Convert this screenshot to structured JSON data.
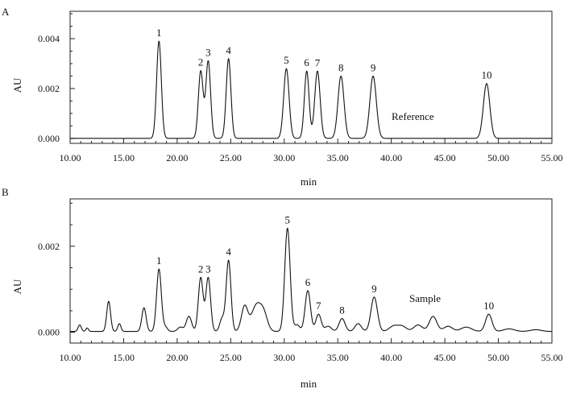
{
  "chart_data": [
    {
      "panel": "A",
      "type": "line",
      "xlabel": "min",
      "ylabel": "AU",
      "xlim": [
        10,
        55
      ],
      "ylim": [
        -0.0002,
        0.0051
      ],
      "x_ticks": [
        "10.00",
        "15.00",
        "20.00",
        "25.00",
        "30.00",
        "35.00",
        "40.00",
        "45.00",
        "50.00",
        "55.00"
      ],
      "y_ticks": [
        {
          "value": 0.0,
          "label": "0.000"
        },
        {
          "value": 0.002,
          "label": "0.002"
        },
        {
          "value": 0.004,
          "label": "0.004"
        }
      ],
      "annotation": "Reference",
      "baseline": 0.0,
      "peaks": [
        {
          "label": "1",
          "x": 18.3,
          "y": 0.0039,
          "width": 0.22
        },
        {
          "label": "2",
          "x": 22.2,
          "y": 0.0027,
          "width": 0.22
        },
        {
          "label": "3",
          "x": 22.9,
          "y": 0.0031,
          "width": 0.22
        },
        {
          "label": "4",
          "x": 24.8,
          "y": 0.0032,
          "width": 0.22
        },
        {
          "label": "5",
          "x": 30.2,
          "y": 0.0028,
          "width": 0.25
        },
        {
          "label": "6",
          "x": 32.1,
          "y": 0.0027,
          "width": 0.22
        },
        {
          "label": "7",
          "x": 33.1,
          "y": 0.0027,
          "width": 0.25
        },
        {
          "label": "8",
          "x": 35.3,
          "y": 0.0025,
          "width": 0.28
        },
        {
          "label": "9",
          "x": 38.3,
          "y": 0.0025,
          "width": 0.3
        },
        {
          "label": "10",
          "x": 48.9,
          "y": 0.0022,
          "width": 0.3
        }
      ],
      "minor_peaks": []
    },
    {
      "panel": "B",
      "type": "line",
      "xlabel": "min",
      "ylabel": "AU",
      "xlim": [
        10,
        55
      ],
      "ylim": [
        -0.00025,
        0.0031
      ],
      "x_ticks": [
        "10.00",
        "15.00",
        "20.00",
        "25.00",
        "30.00",
        "35.00",
        "40.00",
        "45.00",
        "50.00",
        "55.00"
      ],
      "y_ticks": [
        {
          "value": 0.0,
          "label": "0.000"
        },
        {
          "value": 0.002,
          "label": "0.002"
        }
      ],
      "annotation": "Sample",
      "baseline": 2e-05,
      "peaks": [
        {
          "label": "1",
          "x": 18.3,
          "y": 0.00145,
          "width": 0.22
        },
        {
          "label": "2",
          "x": 22.2,
          "y": 0.00125,
          "width": 0.22
        },
        {
          "label": "3",
          "x": 22.9,
          "y": 0.00125,
          "width": 0.22
        },
        {
          "label": "4",
          "x": 24.8,
          "y": 0.00165,
          "width": 0.22
        },
        {
          "label": "5",
          "x": 30.3,
          "y": 0.0024,
          "width": 0.25
        },
        {
          "label": "6",
          "x": 32.2,
          "y": 0.00095,
          "width": 0.25
        },
        {
          "label": "7",
          "x": 33.2,
          "y": 0.0004,
          "width": 0.25
        },
        {
          "label": "8",
          "x": 35.4,
          "y": 0.0003,
          "width": 0.28
        },
        {
          "label": "9",
          "x": 38.4,
          "y": 0.0008,
          "width": 0.3
        },
        {
          "label": "10",
          "x": 49.1,
          "y": 0.0004,
          "width": 0.3
        }
      ],
      "minor_peaks": [
        {
          "x": 10.9,
          "y": 0.00015,
          "width": 0.15
        },
        {
          "x": 11.6,
          "y": 8e-05,
          "width": 0.12
        },
        {
          "x": 13.6,
          "y": 0.0007,
          "width": 0.18
        },
        {
          "x": 14.6,
          "y": 0.00018,
          "width": 0.15
        },
        {
          "x": 16.9,
          "y": 0.00055,
          "width": 0.2
        },
        {
          "x": 18.9,
          "y": 0.0001,
          "width": 0.2
        },
        {
          "x": 20.3,
          "y": 0.0001,
          "width": 0.25
        },
        {
          "x": 21.1,
          "y": 0.00035,
          "width": 0.25
        },
        {
          "x": 24.2,
          "y": 0.0003,
          "width": 0.22
        },
        {
          "x": 26.3,
          "y": 0.00058,
          "width": 0.3
        },
        {
          "x": 27.4,
          "y": 0.0006,
          "width": 0.45
        },
        {
          "x": 28.1,
          "y": 0.00035,
          "width": 0.35
        },
        {
          "x": 31.2,
          "y": 0.00015,
          "width": 0.25
        },
        {
          "x": 34.1,
          "y": 0.00012,
          "width": 0.3
        },
        {
          "x": 36.9,
          "y": 0.00018,
          "width": 0.3
        },
        {
          "x": 40.2,
          "y": 0.00012,
          "width": 0.4
        },
        {
          "x": 41.0,
          "y": 0.00012,
          "width": 0.4
        },
        {
          "x": 42.5,
          "y": 0.00015,
          "width": 0.4
        },
        {
          "x": 43.9,
          "y": 0.00035,
          "width": 0.35
        },
        {
          "x": 45.3,
          "y": 0.00012,
          "width": 0.4
        },
        {
          "x": 47.0,
          "y": 0.0001,
          "width": 0.5
        },
        {
          "x": 51.0,
          "y": 6e-05,
          "width": 0.5
        },
        {
          "x": 53.5,
          "y": 4e-05,
          "width": 0.5
        }
      ]
    }
  ]
}
